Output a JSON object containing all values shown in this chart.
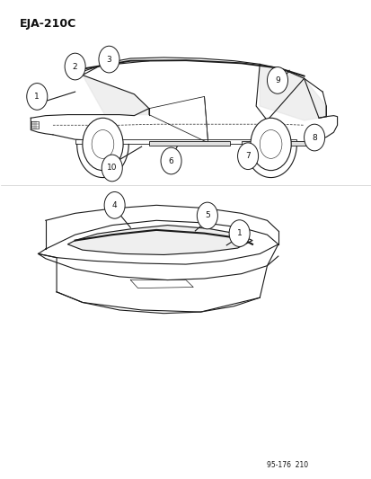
{
  "title": "EJA-210C",
  "footer": "95-176  210",
  "background_color": "#ffffff",
  "line_color": "#1a1a1a",
  "text_color": "#111111",
  "fig_width": 4.14,
  "fig_height": 5.33,
  "dpi": 100
}
